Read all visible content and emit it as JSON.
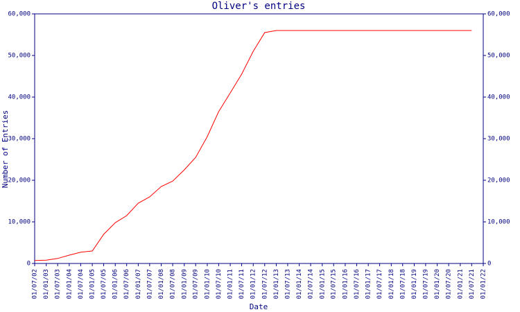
{
  "chart_data": {
    "type": "line",
    "title": "Oliver's entries",
    "xlabel": "Date",
    "ylabel": "Number of Entries",
    "x": [
      "2002-07-01",
      "2003-01-01",
      "2003-07-01",
      "2004-01-01",
      "2004-07-01",
      "2005-01-01",
      "2005-07-01",
      "2006-01-01",
      "2006-07-01",
      "2007-01-01",
      "2007-07-01",
      "2008-01-01",
      "2008-07-01",
      "2009-01-01",
      "2009-07-01",
      "2010-01-01",
      "2010-07-01",
      "2011-01-01",
      "2011-07-01",
      "2012-01-01",
      "2012-07-01",
      "2013-01-01",
      "2013-07-01",
      "2014-01-01",
      "2014-07-01",
      "2015-01-01",
      "2015-07-01",
      "2016-01-01",
      "2016-07-01",
      "2017-01-01",
      "2017-07-01",
      "2018-01-01",
      "2018-07-01",
      "2019-01-01",
      "2019-07-01",
      "2020-01-01",
      "2020-07-01",
      "2021-01-01",
      "2021-07-01"
    ],
    "series": [
      {
        "name": "Oliver",
        "color": "#ff0000",
        "values": [
          700,
          800,
          1200,
          2000,
          2700,
          3000,
          7000,
          9800,
          11500,
          14500,
          16000,
          18500,
          19800,
          22500,
          25500,
          30500,
          36500,
          41000,
          45500,
          51000,
          55500,
          56000,
          56000,
          56000,
          56000,
          56000,
          56000,
          56000,
          56000,
          56000,
          56000,
          56000,
          56000,
          56000,
          56000,
          56000,
          56000,
          56000,
          56000
        ]
      }
    ],
    "xlim": [
      "2002-07-01",
      "2022-01-01"
    ],
    "xticks": [
      {
        "value": "2002-07-01",
        "label": "01/07/02"
      },
      {
        "value": "2003-01-01",
        "label": "01/01/03"
      },
      {
        "value": "2003-07-01",
        "label": "01/07/03"
      },
      {
        "value": "2004-01-01",
        "label": "01/01/04"
      },
      {
        "value": "2004-07-01",
        "label": "01/07/04"
      },
      {
        "value": "2005-01-01",
        "label": "01/01/05"
      },
      {
        "value": "2005-07-01",
        "label": "01/07/05"
      },
      {
        "value": "2006-01-01",
        "label": "01/01/06"
      },
      {
        "value": "2006-07-01",
        "label": "01/07/06"
      },
      {
        "value": "2007-01-01",
        "label": "01/01/07"
      },
      {
        "value": "2007-07-01",
        "label": "01/07/07"
      },
      {
        "value": "2008-01-01",
        "label": "01/01/08"
      },
      {
        "value": "2008-07-01",
        "label": "01/07/08"
      },
      {
        "value": "2009-01-01",
        "label": "01/01/09"
      },
      {
        "value": "2009-07-01",
        "label": "01/07/09"
      },
      {
        "value": "2010-01-01",
        "label": "01/01/10"
      },
      {
        "value": "2010-07-01",
        "label": "01/07/10"
      },
      {
        "value": "2011-01-01",
        "label": "01/01/11"
      },
      {
        "value": "2011-07-01",
        "label": "01/07/11"
      },
      {
        "value": "2012-01-01",
        "label": "01/01/12"
      },
      {
        "value": "2012-07-01",
        "label": "01/07/12"
      },
      {
        "value": "2013-01-01",
        "label": "01/01/13"
      },
      {
        "value": "2013-07-01",
        "label": "01/07/13"
      },
      {
        "value": "2014-01-01",
        "label": "01/01/14"
      },
      {
        "value": "2014-07-01",
        "label": "01/07/14"
      },
      {
        "value": "2015-01-01",
        "label": "01/01/15"
      },
      {
        "value": "2015-07-01",
        "label": "01/07/15"
      },
      {
        "value": "2016-01-01",
        "label": "01/01/16"
      },
      {
        "value": "2016-07-01",
        "label": "01/07/16"
      },
      {
        "value": "2017-01-01",
        "label": "01/01/17"
      },
      {
        "value": "2017-07-01",
        "label": "01/07/17"
      },
      {
        "value": "2018-01-01",
        "label": "01/01/18"
      },
      {
        "value": "2018-07-01",
        "label": "01/07/18"
      },
      {
        "value": "2019-01-01",
        "label": "01/01/19"
      },
      {
        "value": "2019-07-01",
        "label": "01/07/19"
      },
      {
        "value": "2020-01-01",
        "label": "01/01/20"
      },
      {
        "value": "2020-07-01",
        "label": "01/07/20"
      },
      {
        "value": "2021-01-01",
        "label": "01/01/21"
      },
      {
        "value": "2021-07-01",
        "label": "01/07/21"
      },
      {
        "value": "2022-01-01",
        "label": "01/01/22"
      }
    ],
    "ylim": [
      0,
      60000
    ],
    "yticks": [
      0,
      {
        "value": 10000,
        "label": "10,000"
      },
      {
        "value": 20000,
        "label": "20,000"
      },
      {
        "value": 30000,
        "label": "30,000"
      },
      {
        "value": 40000,
        "label": "40,000"
      },
      {
        "value": 50000,
        "label": "50,000"
      },
      {
        "value": 60000,
        "label": "60,000"
      }
    ],
    "axis_color": "#000080"
  }
}
